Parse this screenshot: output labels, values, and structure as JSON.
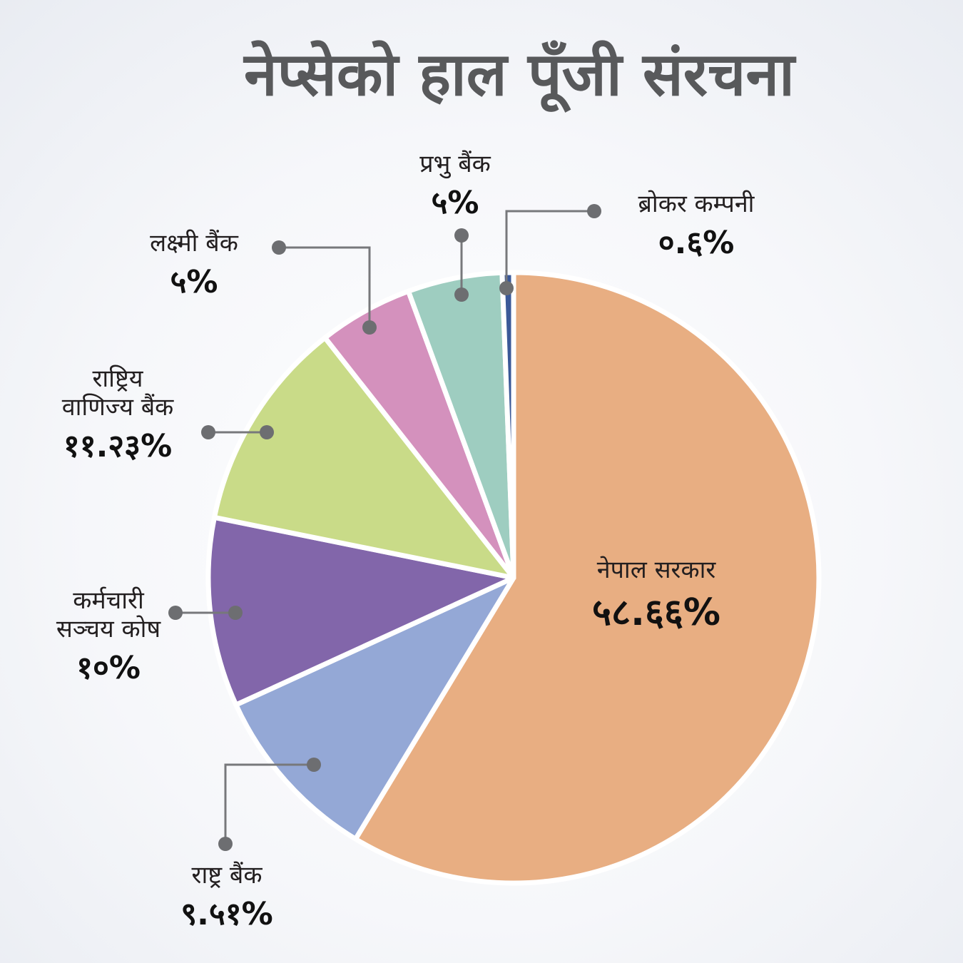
{
  "title": "नेप्सेको हाल पूँजी संरचना",
  "chart_data": {
    "type": "pie",
    "title": "नेप्सेको हाल पूँजी संरचना",
    "slices": [
      {
        "name": "नेपाल सरकार",
        "value": 58.66,
        "value_label": "५८.६६%",
        "color": "#e8ae82"
      },
      {
        "name": "राष्ट्र बैंक",
        "value": 9.51,
        "value_label": "९.५१%",
        "color": "#94a8d6"
      },
      {
        "name": "कर्मचारी सञ्चय कोष",
        "name_lines": [
          "कर्मचारी",
          "सञ्चय कोष"
        ],
        "value": 10,
        "value_label": "१०%",
        "color": "#8266aa"
      },
      {
        "name": "राष्ट्रिय वाणिज्य बैंक",
        "name_lines": [
          "राष्ट्रिय",
          "वाणिज्य बैंक"
        ],
        "value": 11.23,
        "value_label": "११.२३%",
        "color": "#c9db88"
      },
      {
        "name": "लक्ष्मी बैंक",
        "value": 5,
        "value_label": "५%",
        "color": "#d491bd"
      },
      {
        "name": "प्रभु बैंक",
        "value": 5,
        "value_label": "५%",
        "color": "#9ecdc0"
      },
      {
        "name": "ब्रोकर कम्पनी",
        "value": 0.6,
        "value_label": "०.६%",
        "color": "#3b5998"
      }
    ]
  }
}
